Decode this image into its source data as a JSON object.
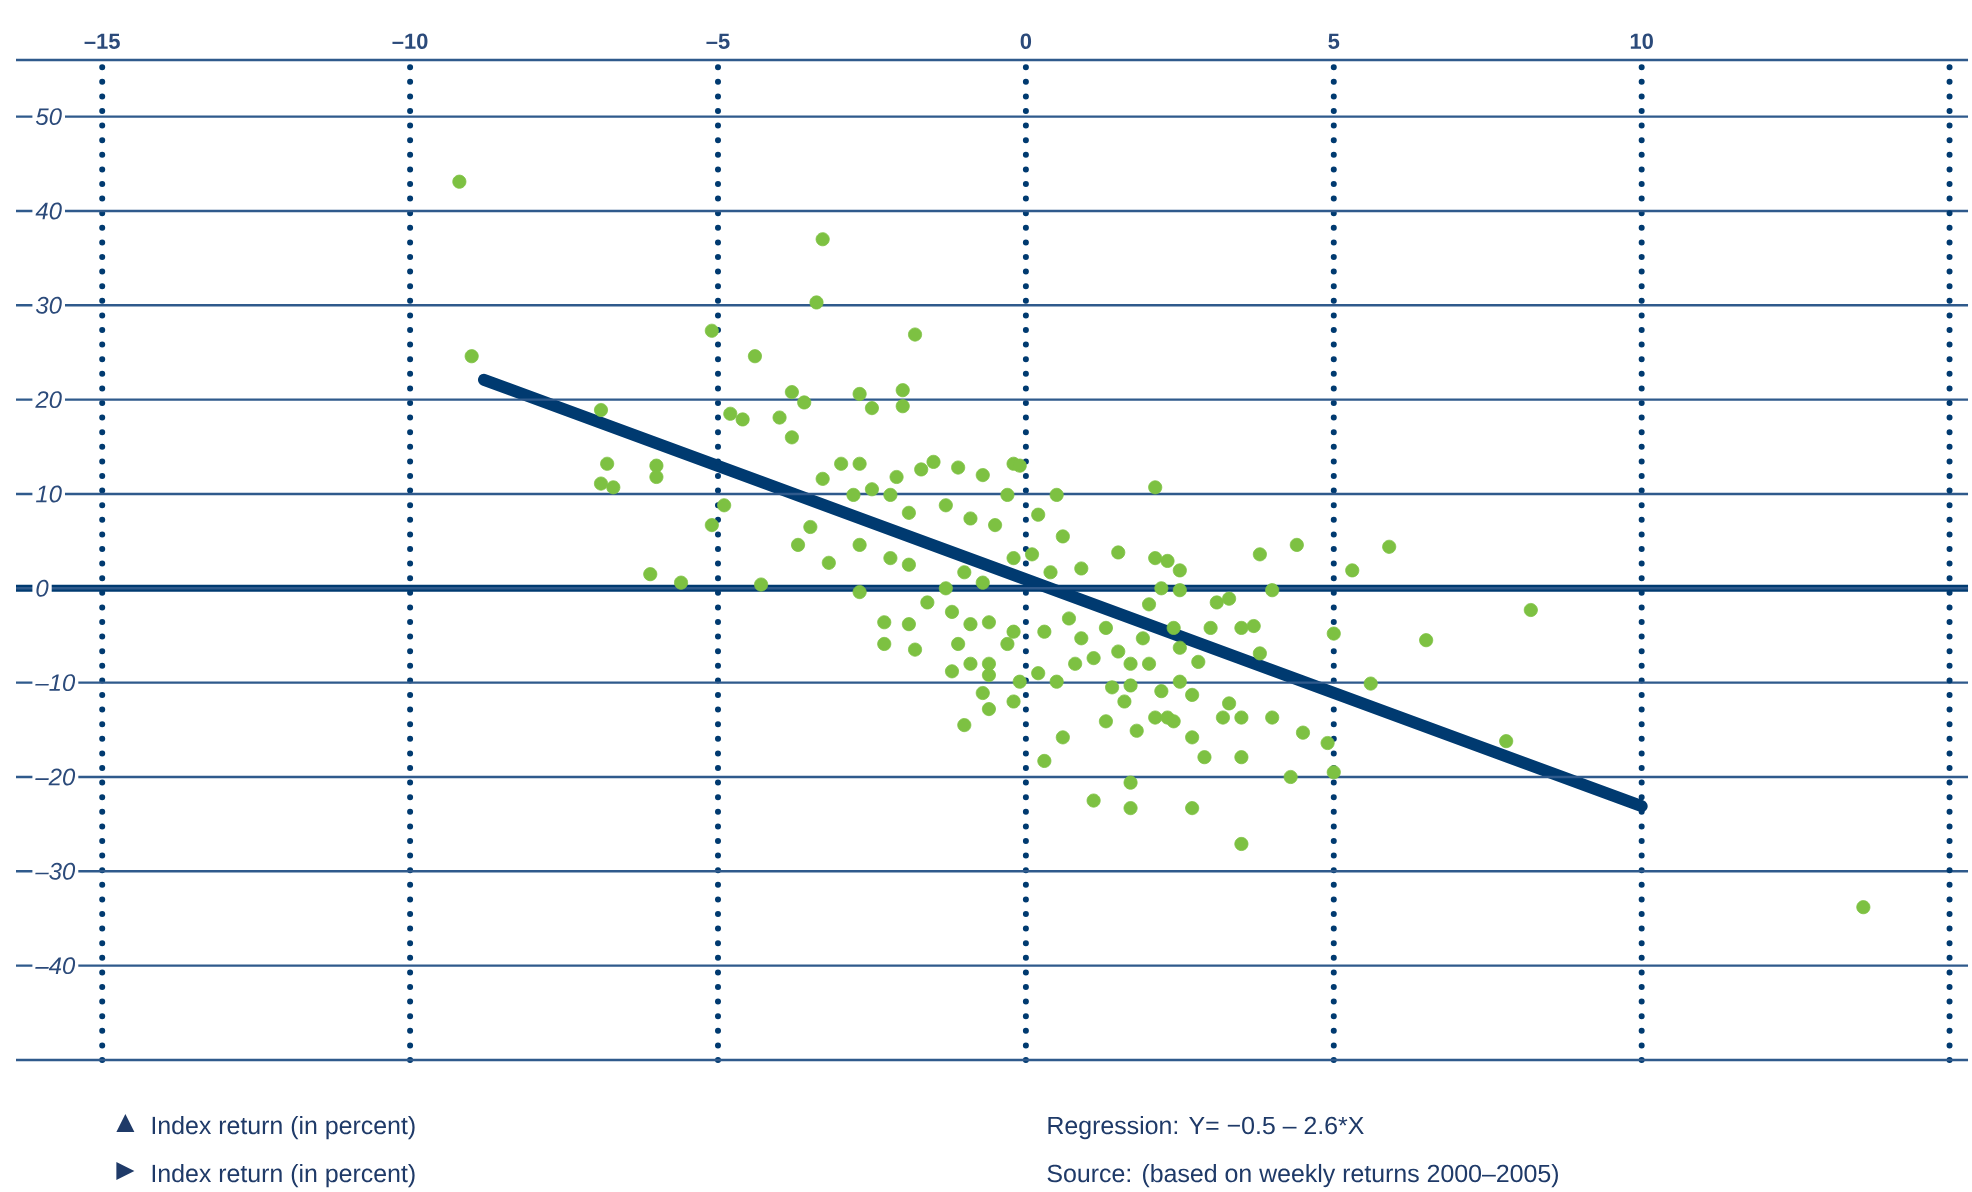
{
  "chart_data": {
    "type": "scatter",
    "annotations": [
      "Index return (in percent)",
      "Regression: Y= −0.5 – 2.6*X",
      "Index return (in percent)",
      "Source: (based on weekly returns 2000–2005)"
    ],
    "xlim": [
      -16.4,
      15.3
    ],
    "ylim": [
      -50,
      56
    ],
    "xticks": [
      {
        "value": -15,
        "label": "–15"
      },
      {
        "value": -10,
        "label": "–10"
      },
      {
        "value": -5,
        "label": "–5"
      },
      {
        "value": 0,
        "label": "0"
      },
      {
        "value": 5,
        "label": "5"
      },
      {
        "value": 10,
        "label": "10"
      },
      {
        "value": 15,
        "label": null
      }
    ],
    "yticks": [
      {
        "value": -50,
        "label": null
      },
      {
        "value": -40,
        "label": "–40"
      },
      {
        "value": -30,
        "label": "–30"
      },
      {
        "value": -20,
        "label": "–20"
      },
      {
        "value": -10,
        "label": "–10"
      },
      {
        "value": 0,
        "label": "0"
      },
      {
        "value": 10,
        "label": "10"
      },
      {
        "value": 20,
        "label": "20"
      },
      {
        "value": 30,
        "label": "30"
      },
      {
        "value": 40,
        "label": "40"
      },
      {
        "value": 50,
        "label": "50"
      }
    ],
    "grid": true,
    "ref_lines": [
      {
        "axis": "y",
        "value": 0,
        "color": "#003a70"
      }
    ],
    "series": [
      {
        "color": "#7dc142",
        "marker": "circle",
        "x": [
          -9.2,
          -9.0,
          -6.9,
          -6.8,
          -6.7,
          -6.9,
          -6.0,
          -6.0,
          -6.1,
          -5.6,
          -3.3,
          -3.4,
          -5.1,
          -4.4,
          -1.8,
          -4.8,
          -4.6,
          -4.0,
          -3.8,
          -3.6,
          -3.8,
          -2.7,
          -2.5,
          -2.0,
          -2.0,
          -4.9,
          -5.1,
          -4.3,
          -3.0,
          -2.7,
          -3.3,
          -2.5,
          -2.1,
          -1.7,
          -1.5,
          -1.1,
          -0.7,
          -0.2,
          -0.1,
          0.5,
          -0.3,
          0.2,
          0.6,
          2.1,
          -3.7,
          -3.5,
          -3.2,
          -2.7,
          -2.8,
          -2.2,
          -1.9,
          -1.3,
          -0.9,
          -0.5,
          -2.7,
          -2.2,
          -1.9,
          -1.3,
          -1.0,
          -0.7,
          -0.2,
          0.1,
          0.4,
          0.9,
          1.5,
          2.1,
          2.3,
          2.5,
          3.8,
          4.4,
          5.3,
          2.2,
          2.5,
          4.0,
          3.1,
          3.3,
          -2.3,
          -1.9,
          -2.3,
          -1.8,
          -1.6,
          -1.2,
          -0.9,
          -1.1,
          -0.6,
          -0.2,
          -0.3,
          -1.2,
          -0.9,
          -0.6,
          -0.6,
          -0.7,
          -0.6,
          -1.0,
          -0.2,
          -0.1,
          0.2,
          0.5,
          0.3,
          0.7,
          0.9,
          1.3,
          1.1,
          0.8,
          1.5,
          1.7,
          2.0,
          1.9,
          2.0,
          1.4,
          1.7,
          1.6,
          2.2,
          2.4,
          2.5,
          2.8,
          2.5,
          2.7,
          3.0,
          3.5,
          3.7,
          3.8,
          3.3,
          3.2,
          2.1,
          2.3,
          2.4,
          2.7,
          2.9,
          3.5,
          4.0,
          4.5,
          4.9,
          5.0,
          5.0,
          5.6,
          3.5,
          4.3,
          1.3,
          1.8,
          0.6,
          0.3,
          1.7,
          1.7,
          1.1,
          2.7,
          3.5,
          5.9,
          8.2,
          6.5,
          7.8,
          13.6
        ],
        "values": [
          43.1,
          24.6,
          18.9,
          13.2,
          10.7,
          11.1,
          13.0,
          11.8,
          1.5,
          0.6,
          37.0,
          30.3,
          27.3,
          24.6,
          26.9,
          18.5,
          17.9,
          18.1,
          20.8,
          19.7,
          16.0,
          20.6,
          19.1,
          21.0,
          19.3,
          8.8,
          6.7,
          0.4,
          13.2,
          13.2,
          11.6,
          10.5,
          11.8,
          12.6,
          13.4,
          12.8,
          12.0,
          13.2,
          13.0,
          9.9,
          9.9,
          7.8,
          5.5,
          10.7,
          4.6,
          6.5,
          2.7,
          4.6,
          9.9,
          9.9,
          8.0,
          8.8,
          7.4,
          6.7,
          -0.4,
          3.2,
          2.5,
          0.0,
          1.7,
          0.6,
          3.2,
          3.6,
          1.7,
          2.1,
          3.8,
          3.2,
          2.9,
          1.9,
          3.6,
          4.6,
          1.9,
          0.0,
          -0.2,
          -0.2,
          -1.5,
          -1.1,
          -3.6,
          -3.8,
          -5.9,
          -6.5,
          -1.5,
          -2.5,
          -3.8,
          -5.9,
          -3.6,
          -4.6,
          -5.9,
          -8.8,
          -8.0,
          -8.0,
          -9.2,
          -11.1,
          -12.8,
          -14.5,
          -12.0,
          -9.9,
          -9.0,
          -9.9,
          -4.6,
          -3.2,
          -5.3,
          -4.2,
          -7.4,
          -8.0,
          -6.7,
          -8.0,
          -8.0,
          -5.3,
          -1.7,
          -10.5,
          -10.3,
          -12.0,
          -10.9,
          -4.2,
          -6.3,
          -7.8,
          -9.9,
          -11.3,
          -4.2,
          -4.2,
          -4.0,
          -6.9,
          -12.2,
          -13.7,
          -13.7,
          -13.7,
          -14.1,
          -15.8,
          -17.9,
          -13.7,
          -13.7,
          -15.3,
          -16.4,
          -19.5,
          -4.8,
          -10.1,
          -17.9,
          -20.0,
          -14.1,
          -15.1,
          -15.8,
          -18.3,
          -20.6,
          -23.3,
          -22.5,
          -23.3,
          -27.1,
          4.4,
          -2.3,
          -5.5,
          -16.2,
          -33.8
        ]
      },
      {
        "type": "line",
        "color": "#003a70",
        "marker": "none",
        "x": [
          -8.8,
          10.0
        ],
        "values": [
          22.1,
          -23.1
        ]
      }
    ]
  }
}
